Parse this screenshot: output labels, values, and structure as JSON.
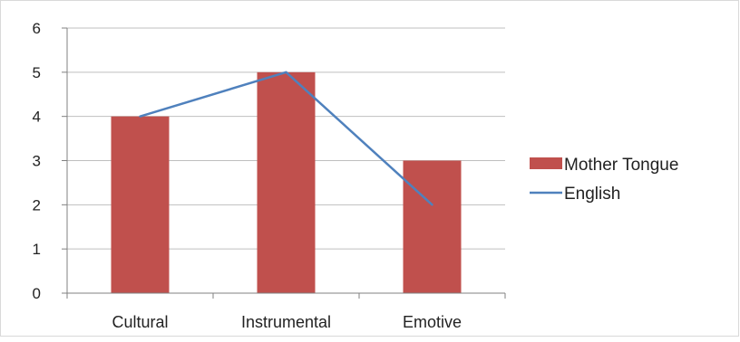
{
  "chart_data": {
    "type": "bar",
    "categories": [
      "Cultural",
      "Instrumental",
      "Emotive"
    ],
    "series": [
      {
        "name": "Mother Tongue",
        "type": "bar",
        "color": "#c0504d",
        "values": [
          4,
          5,
          3
        ]
      },
      {
        "name": "English",
        "type": "line",
        "color": "#4f81bd",
        "values": [
          4,
          5,
          2
        ]
      }
    ],
    "yticks": [
      "0",
      "1",
      "2",
      "3",
      "4",
      "5",
      "6"
    ],
    "ylim": [
      0,
      6
    ],
    "grid": true,
    "legend_position": "right"
  }
}
